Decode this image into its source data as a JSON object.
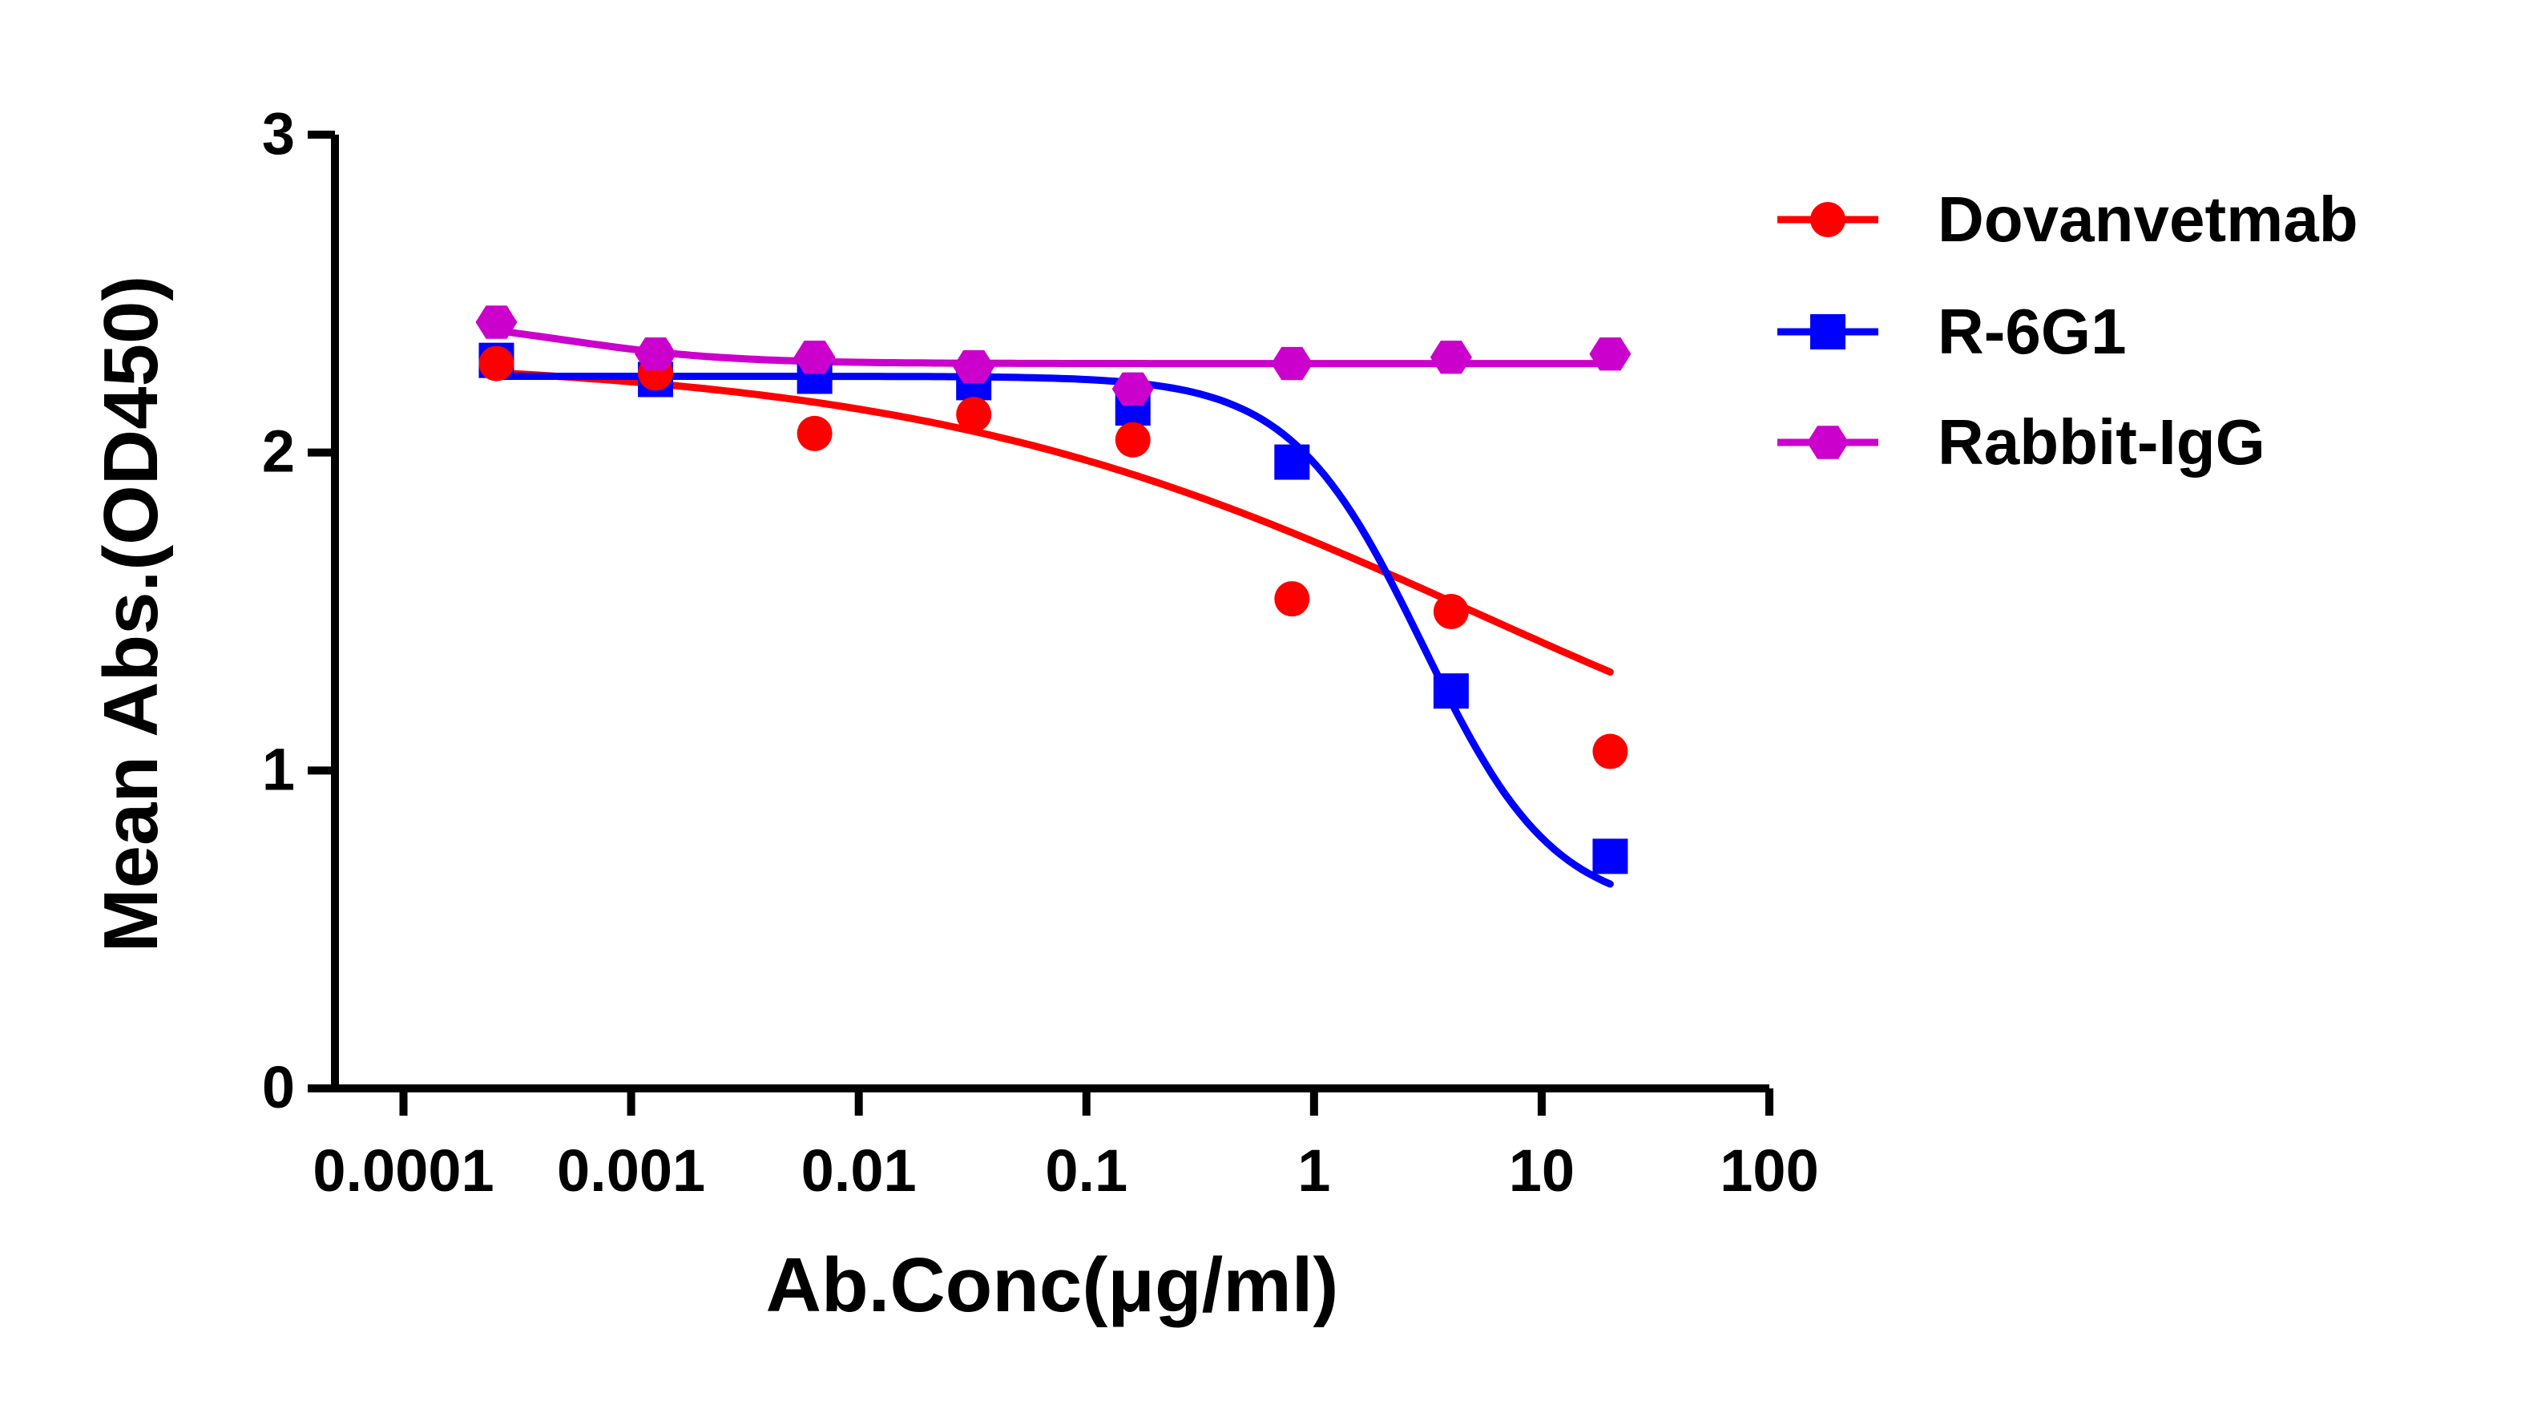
{
  "chart_data": {
    "type": "scatter",
    "title": "",
    "xlabel": "Ab.Conc(μg/ml)",
    "ylabel": "Mean Abs.(OD450)",
    "x_scale": "log",
    "xlim": [
      5e-05,
      100
    ],
    "ylim": [
      0,
      3
    ],
    "x_ticks": [
      0.0001,
      0.001,
      0.01,
      0.1,
      1,
      10,
      100
    ],
    "x_tick_labels": [
      "0.0001",
      "0.001",
      "0.01",
      "0.1",
      "1",
      "10",
      "100"
    ],
    "y_ticks": [
      0,
      1,
      2,
      3
    ],
    "y_tick_labels": [
      "0",
      "1",
      "2",
      "3"
    ],
    "grid": false,
    "legend_position": "right",
    "x": [
      0.000256,
      0.00128,
      0.0064,
      0.032,
      0.16,
      0.8,
      4,
      20
    ],
    "series": [
      {
        "name": "Dovanvetmab",
        "color": "#ff0000",
        "marker": "circle",
        "values": [
          2.28,
          2.25,
          2.06,
          2.12,
          2.04,
          1.54,
          1.5,
          1.06
        ],
        "fit": {
          "top": 2.3,
          "bottom": 0.7,
          "ec50": 5.0,
          "hill": 0.35
        }
      },
      {
        "name": "R-6G1",
        "color": "#0000ff",
        "marker": "square",
        "values": [
          2.29,
          2.23,
          2.24,
          2.22,
          2.14,
          1.97,
          1.25,
          0.73
        ],
        "fit": {
          "top": 2.24,
          "bottom": 0.55,
          "ec50": 3.0,
          "hill": 1.5
        }
      },
      {
        "name": "Rabbit-IgG",
        "color": "#cc00cc",
        "marker": "hexagon",
        "values": [
          2.41,
          2.31,
          2.3,
          2.27,
          2.2,
          2.28,
          2.3,
          2.31
        ],
        "fit": {
          "top": 2.43,
          "bottom": 2.28,
          "ec50": 0.0005,
          "hill": 1.2
        }
      }
    ],
    "legend": [
      "Dovanvetmab",
      "R-6G1",
      "Rabbit-IgG"
    ]
  }
}
